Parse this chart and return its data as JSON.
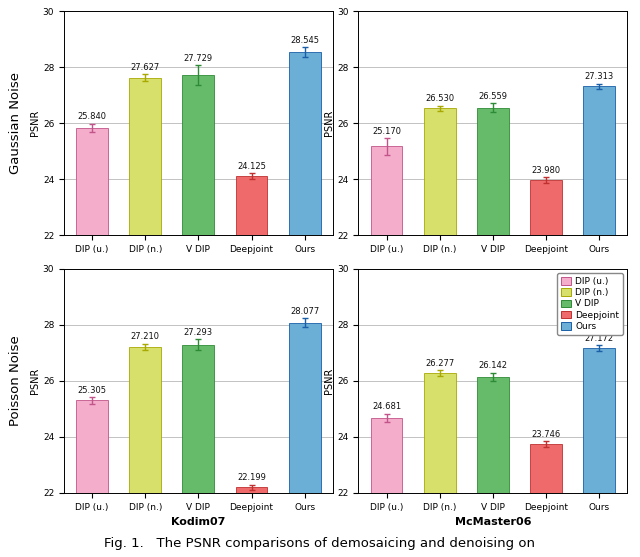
{
  "subplots": [
    {
      "row_label": "Gaussian Noise",
      "xlabel": "",
      "values": [
        25.84,
        27.627,
        27.729,
        24.125,
        28.545
      ],
      "errors": [
        0.15,
        0.12,
        0.35,
        0.1,
        0.18
      ],
      "ylim": [
        22,
        30
      ],
      "yticks": [
        22,
        24,
        26,
        28,
        30
      ]
    },
    {
      "row_label": "",
      "xlabel": "",
      "values": [
        25.17,
        26.53,
        26.559,
        23.98,
        27.313
      ],
      "errors": [
        0.3,
        0.1,
        0.15,
        0.1,
        0.1
      ],
      "ylim": [
        22,
        30
      ],
      "yticks": [
        22,
        24,
        26,
        28,
        30
      ]
    },
    {
      "row_label": "Poisson Noise",
      "xlabel": "Kodim07",
      "values": [
        25.305,
        27.21,
        27.293,
        22.199,
        28.077
      ],
      "errors": [
        0.12,
        0.12,
        0.2,
        0.1,
        0.15
      ],
      "ylim": [
        22,
        30
      ],
      "yticks": [
        22,
        24,
        26,
        28,
        30
      ]
    },
    {
      "row_label": "",
      "xlabel": "McMaster06",
      "values": [
        24.681,
        26.277,
        26.142,
        23.746,
        27.172
      ],
      "errors": [
        0.15,
        0.1,
        0.15,
        0.1,
        0.1
      ],
      "ylim": [
        22,
        30
      ],
      "yticks": [
        22,
        24,
        26,
        28,
        30
      ]
    }
  ],
  "categories": [
    "DIP (u.)",
    "DIP (n.)",
    "V DIP",
    "Deepjoint",
    "Ours"
  ],
  "bar_colors": [
    "#F4AECB",
    "#D6E06A",
    "#66BB6A",
    "#EF6B6B",
    "#6BAED6"
  ],
  "bar_edge_colors": [
    "#C2548A",
    "#A8A800",
    "#2E8B35",
    "#C03030",
    "#1A5FA8"
  ],
  "ylabel": "PSNR",
  "legend_labels": [
    "DIP (u.)",
    "DIP (n.)",
    "V DIP",
    "Deepjoint",
    "Ours"
  ],
  "caption": "Fig. 1.   The PSNR comparisons of demosaicing and denoising on",
  "fig_width": 6.4,
  "fig_height": 5.57,
  "dpi": 100,
  "bar_width": 0.6,
  "value_fontsize": 6.0,
  "tick_fontsize": 6.5,
  "ylabel_fontsize": 7.0,
  "xlabel_fontsize": 8.0,
  "row_label_fontsize": 9.5,
  "legend_fontsize": 6.5,
  "caption_fontsize": 9.5
}
